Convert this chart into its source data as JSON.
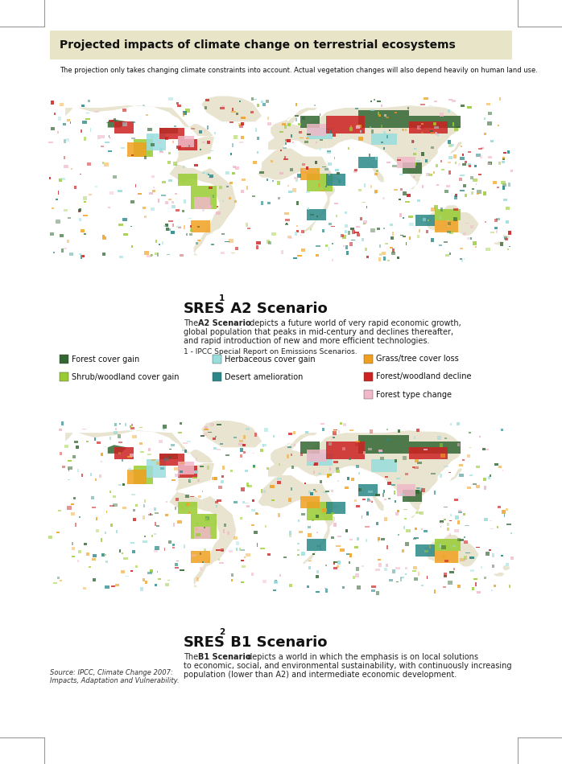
{
  "title": "Projected impacts of climate change on terrestrial ecosystems",
  "subtitle": "The projection only takes changing climate constraints into account. Actual vegetation changes will also depend heavily on human land use.",
  "title_bg_color": "#e8e4c8",
  "bg_color": "#ffffff",
  "sres1_footnote": "1 - IPCC Special Report on Emissions Scenarios.",
  "source_line1": "Source: IPCC, Climate Change 2007:",
  "source_line2": "Impacts, Adaptation and Vulnerability.",
  "sres1_desc1": "The ",
  "sres1_desc_bold": "A2 Scenario",
  "sres1_desc2": " depicts a future world of very rapid economic growth,",
  "sres1_desc3": "global population that peaks in mid-century and declines thereafter,",
  "sres1_desc4": "and rapid introduction of new and more efficient technologies.",
  "sres2_desc_bold": "B1 Scenario",
  "sres2_desc2": " depicts a world in which the emphasis is on local solutions",
  "sres2_desc3": "to economic, social, and environmental sustainability, with continuously increasing",
  "sres2_desc4": "population (lower than A2) and intermediate economic development.",
  "legend_items": [
    {
      "label": "Forest cover gain",
      "color": "#336633"
    },
    {
      "label": "Shrub/woodland cover gain",
      "color": "#99cc33"
    },
    {
      "label": "Herbaceous cover gain",
      "color": "#99dddd"
    },
    {
      "label": "Desert amelioration",
      "color": "#2a8888"
    },
    {
      "label": "Grass/tree cover loss",
      "color": "#f0a020"
    },
    {
      "label": "Forest/woodland decline",
      "color": "#cc2222"
    },
    {
      "label": "Forest type change",
      "color": "#f0b8c8"
    }
  ],
  "land_color": "#e8e4d0",
  "ocean_color": "#ffffff"
}
